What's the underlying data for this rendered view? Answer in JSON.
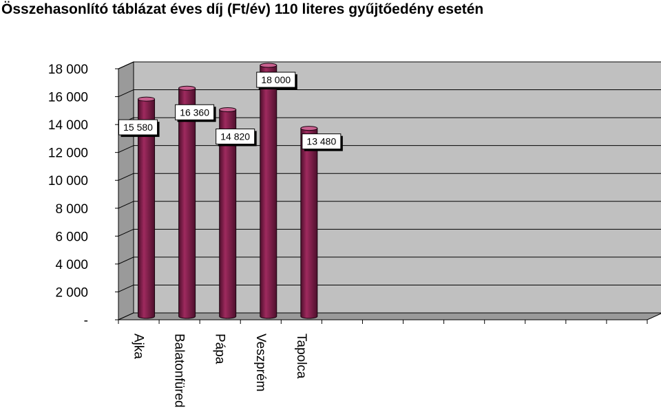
{
  "chart_data": {
    "type": "bar",
    "title": "Összehasonlító táblázat éves díj (Ft/év) 110 literes gyűjtőedény esetén",
    "categories": [
      "Ajka",
      "Balatonfüred",
      "Pápa",
      "Veszprém",
      "Tapolca"
    ],
    "values": [
      15580,
      16360,
      14820,
      18000,
      13480
    ],
    "data_labels": [
      "15 580",
      "16 360",
      "14 820",
      "18 000",
      "13 480"
    ],
    "ylim": [
      0,
      18000
    ],
    "yticks": [
      0,
      2000,
      4000,
      6000,
      8000,
      10000,
      12000,
      14000,
      16000,
      18000
    ],
    "ytick_labels": [
      "-",
      "2 000",
      "4 000",
      "6 000",
      "8 000",
      "10 000",
      "12 000",
      "14 000",
      "16 000",
      "18 000"
    ],
    "empty_slots": 8,
    "grid": true,
    "style": "3d-cylinder",
    "colors": {
      "bar": "#9e2a5e",
      "bar_dark": "#4e0f2c",
      "bar_light": "#c9608f",
      "wall": "#c0c0c0",
      "floor": "#9a9a9a"
    }
  }
}
